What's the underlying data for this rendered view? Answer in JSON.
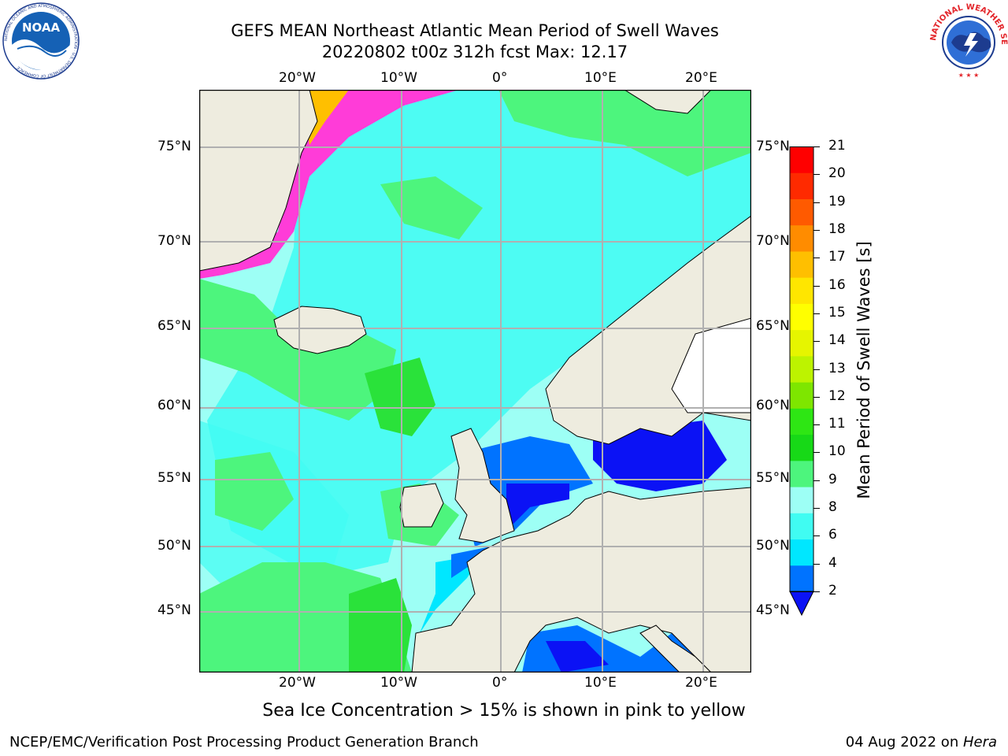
{
  "header": {
    "title_line1": "GEFS MEAN Northeast Atlantic Mean Period of Swell Waves",
    "title_line2": "20220802 t00z 312h fcst   Max: 12.17"
  },
  "logos": {
    "noaa": {
      "text": "NOAA",
      "ring_text": "NATIONAL OCEANIC AND ATMOSPHERIC ADMINISTRATION · U.S. DEPARTMENT OF COMMERCE"
    },
    "nws": {
      "ring_text": "NATIONAL WEATHER SERVICE"
    }
  },
  "map": {
    "lon_labels": [
      "20°W",
      "10°W",
      "0°",
      "10°E",
      "20°E"
    ],
    "lon_labels_bottom": [
      "20°W",
      "10°W",
      "0°",
      "10°E",
      "20°E"
    ],
    "lat_labels_left": [
      "75°N",
      "70°N",
      "65°N",
      "60°N",
      "55°N",
      "50°N",
      "45°N"
    ],
    "lat_labels_right": [
      "75°N",
      "70°N",
      "65°N",
      "60°N",
      "55°N",
      "50°N",
      "45°N"
    ],
    "colors": {
      "land": "#eeecdf",
      "grid": "#b0b0b0",
      "ocean_main": "#9dfff5",
      "ocean_mid": "#40fcf2",
      "swell_9_10": "#4df57d",
      "swell_10_11": "#2ae23a",
      "shallow": "#0073ff",
      "low": "#0b12f5",
      "ice": "#ff3cd8"
    }
  },
  "colorbar": {
    "label": "Mean Period of Swell Waves [s]",
    "ticks": [
      "21",
      "20",
      "19",
      "18",
      "17",
      "16",
      "15",
      "14",
      "13",
      "12",
      "11",
      "10",
      "9",
      "8",
      "6",
      "4",
      "2"
    ],
    "colors": [
      "#0035ff",
      "#0073ff",
      "#00e7ff",
      "#40fcf2",
      "#9dfff5",
      "#4df57d",
      "#17d917",
      "#2ee614",
      "#7ee600",
      "#bdf300",
      "#e6f500",
      "#ffff00",
      "#ffe600",
      "#ffbf00",
      "#ff8c00",
      "#ff5a00",
      "#ff2a00",
      "#ff0000"
    ],
    "extend_color": "#0b12f5"
  },
  "caption": "Sea Ice Concentration > 15% is shown in pink to yellow",
  "footer": {
    "left": "NCEP/EMC/Verification Post Processing Product Generation Branch",
    "right_date": "04 Aug 2022 on ",
    "right_machine": "Hera"
  }
}
